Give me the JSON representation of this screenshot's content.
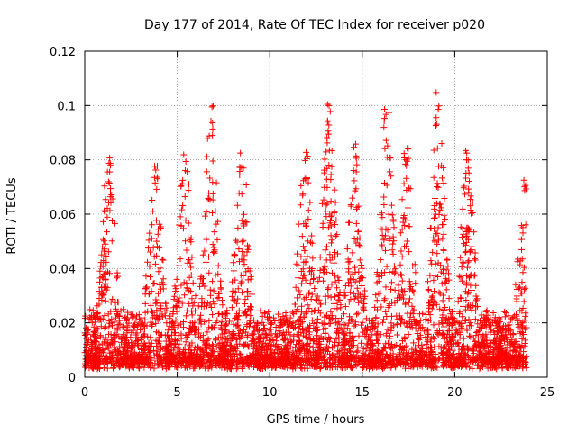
{
  "chart_data": {
    "type": "scatter",
    "title": "Day 177 of 2014, Rate Of TEC Index for receiver p020",
    "xlabel": "GPS time / hours",
    "ylabel": "ROTI / TECUs",
    "xlim": [
      0,
      25
    ],
    "ylim": [
      0,
      0.12
    ],
    "xticks": [
      0,
      5,
      10,
      15,
      20,
      25
    ],
    "xtick_labels": [
      "0",
      "5",
      "10",
      "15",
      "20",
      "25"
    ],
    "yticks": [
      0,
      0.02,
      0.04,
      0.06,
      0.08,
      0.1,
      0.12
    ],
    "ytick_labels": [
      "0",
      "0.02",
      "0.04",
      "0.06",
      "0.08",
      "0.1",
      "0.12"
    ],
    "grid": true,
    "marker": "+",
    "marker_color": "#ff0000",
    "x_extent_hours": [
      0,
      23.9
    ],
    "baseline_roti": 0.012,
    "peaks": [
      {
        "x": 1.3,
        "y": 0.083
      },
      {
        "x": 3.8,
        "y": 0.08
      },
      {
        "x": 5.4,
        "y": 0.084
      },
      {
        "x": 6.8,
        "y": 0.1
      },
      {
        "x": 8.5,
        "y": 0.084
      },
      {
        "x": 11.9,
        "y": 0.084
      },
      {
        "x": 13.2,
        "y": 0.101
      },
      {
        "x": 14.6,
        "y": 0.086
      },
      {
        "x": 16.3,
        "y": 0.103
      },
      {
        "x": 17.4,
        "y": 0.085
      },
      {
        "x": 19.1,
        "y": 0.105
      },
      {
        "x": 20.7,
        "y": 0.084
      },
      {
        "x": 23.8,
        "y": 0.074
      }
    ]
  }
}
